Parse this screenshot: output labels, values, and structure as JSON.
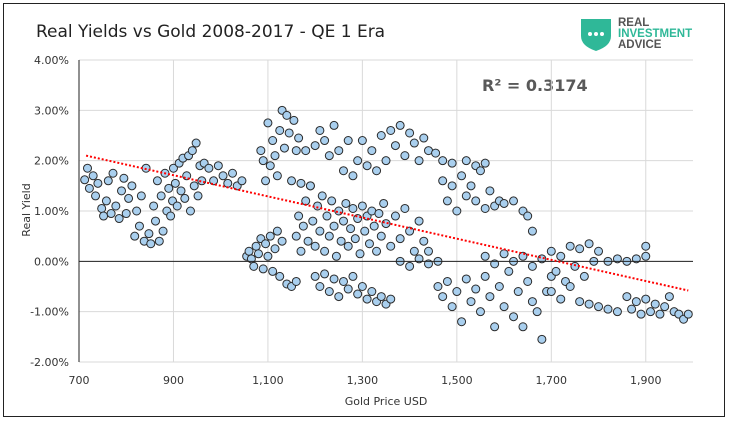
{
  "chart_data": {
    "type": "scatter",
    "title": "Real Yields vs Gold 2008-2017 - QE 1 Era",
    "xlabel": "Gold Price USD",
    "ylabel": "Real Yield",
    "xlim": [
      700,
      2000
    ],
    "ylim": [
      -2.0,
      4.0
    ],
    "x_ticks": [
      "700",
      "900",
      "1,100",
      "1,300",
      "1,500",
      "1,700",
      "1,900"
    ],
    "x_tick_values": [
      700,
      900,
      1100,
      1300,
      1500,
      1700,
      1900
    ],
    "y_ticks": [
      "4.00%",
      "3.00%",
      "2.00%",
      "1.00%",
      "0.00%",
      "-1.00%",
      "-2.00%"
    ],
    "y_tick_values": [
      4,
      3,
      2,
      1,
      0,
      -1,
      -2
    ],
    "grid": true,
    "annotation": "R² = 0.3174",
    "trendline": {
      "style": "dotted",
      "color": "#ff0000",
      "points": [
        [
          715,
          2.1
        ],
        [
          1990,
          -0.58
        ]
      ]
    },
    "marker_fill": "#a9cfee",
    "marker_stroke": "#2b2b2b",
    "points": [
      [
        712,
        1.62
      ],
      [
        718,
        1.85
      ],
      [
        722,
        1.45
      ],
      [
        730,
        1.7
      ],
      [
        735,
        1.3
      ],
      [
        740,
        1.55
      ],
      [
        748,
        1.05
      ],
      [
        752,
        0.9
      ],
      [
        758,
        1.2
      ],
      [
        762,
        1.6
      ],
      [
        768,
        0.95
      ],
      [
        772,
        1.75
      ],
      [
        778,
        1.1
      ],
      [
        785,
        0.85
      ],
      [
        790,
        1.4
      ],
      [
        795,
        1.65
      ],
      [
        800,
        0.95
      ],
      [
        805,
        1.25
      ],
      [
        812,
        1.5
      ],
      [
        818,
        0.5
      ],
      [
        822,
        1.0
      ],
      [
        828,
        0.7
      ],
      [
        832,
        1.3
      ],
      [
        838,
        0.4
      ],
      [
        842,
        1.85
      ],
      [
        848,
        0.55
      ],
      [
        852,
        0.35
      ],
      [
        858,
        1.1
      ],
      [
        862,
        0.8
      ],
      [
        866,
        1.6
      ],
      [
        870,
        0.4
      ],
      [
        874,
        1.3
      ],
      [
        878,
        0.6
      ],
      [
        882,
        1.75
      ],
      [
        886,
        1.0
      ],
      [
        890,
        1.45
      ],
      [
        894,
        0.9
      ],
      [
        898,
        1.2
      ],
      [
        900,
        1.85
      ],
      [
        904,
        1.55
      ],
      [
        908,
        1.1
      ],
      [
        912,
        1.95
      ],
      [
        916,
        1.4
      ],
      [
        920,
        2.05
      ],
      [
        924,
        1.25
      ],
      [
        928,
        1.7
      ],
      [
        932,
        2.1
      ],
      [
        936,
        1.0
      ],
      [
        940,
        2.2
      ],
      [
        944,
        1.5
      ],
      [
        948,
        2.35
      ],
      [
        952,
        1.3
      ],
      [
        956,
        1.9
      ],
      [
        960,
        1.6
      ],
      [
        965,
        1.95
      ],
      [
        975,
        1.85
      ],
      [
        985,
        1.6
      ],
      [
        995,
        1.9
      ],
      [
        1005,
        1.7
      ],
      [
        1015,
        1.55
      ],
      [
        1025,
        1.75
      ],
      [
        1035,
        1.5
      ],
      [
        1045,
        1.6
      ],
      [
        1055,
        0.1
      ],
      [
        1060,
        0.2
      ],
      [
        1065,
        0.05
      ],
      [
        1070,
        -0.1
      ],
      [
        1075,
        0.3
      ],
      [
        1080,
        0.15
      ],
      [
        1085,
        0.45
      ],
      [
        1090,
        -0.15
      ],
      [
        1095,
        0.35
      ],
      [
        1100,
        0.1
      ],
      [
        1105,
        0.5
      ],
      [
        1110,
        -0.2
      ],
      [
        1115,
        0.25
      ],
      [
        1120,
        0.6
      ],
      [
        1125,
        -0.3
      ],
      [
        1130,
        0.4
      ],
      [
        1140,
        -0.45
      ],
      [
        1150,
        -0.5
      ],
      [
        1160,
        -0.4
      ],
      [
        1085,
        2.2
      ],
      [
        1090,
        2.0
      ],
      [
        1095,
        1.6
      ],
      [
        1100,
        2.75
      ],
      [
        1105,
        1.9
      ],
      [
        1110,
        2.4
      ],
      [
        1115,
        2.1
      ],
      [
        1120,
        1.7
      ],
      [
        1125,
        2.6
      ],
      [
        1130,
        3.0
      ],
      [
        1135,
        2.25
      ],
      [
        1140,
        2.9
      ],
      [
        1145,
        2.55
      ],
      [
        1150,
        1.6
      ],
      [
        1155,
        2.8
      ],
      [
        1160,
        2.2
      ],
      [
        1165,
        2.45
      ],
      [
        1170,
        1.55
      ],
      [
        1180,
        2.2
      ],
      [
        1190,
        1.5
      ],
      [
        1200,
        2.3
      ],
      [
        1210,
        2.6
      ],
      [
        1220,
        2.4
      ],
      [
        1230,
        2.1
      ],
      [
        1240,
        2.7
      ],
      [
        1250,
        2.2
      ],
      [
        1260,
        1.8
      ],
      [
        1270,
        2.4
      ],
      [
        1280,
        1.7
      ],
      [
        1290,
        2.0
      ],
      [
        1160,
        0.5
      ],
      [
        1165,
        0.9
      ],
      [
        1170,
        0.2
      ],
      [
        1175,
        0.7
      ],
      [
        1180,
        1.2
      ],
      [
        1185,
        0.4
      ],
      [
        1190,
        1.5
      ],
      [
        1195,
        0.8
      ],
      [
        1200,
        0.3
      ],
      [
        1205,
        1.1
      ],
      [
        1210,
        0.6
      ],
      [
        1215,
        1.3
      ],
      [
        1220,
        0.2
      ],
      [
        1225,
        0.9
      ],
      [
        1230,
        0.5
      ],
      [
        1235,
        1.2
      ],
      [
        1240,
        0.7
      ],
      [
        1245,
        0.1
      ],
      [
        1250,
        1.0
      ],
      [
        1255,
        0.4
      ],
      [
        1260,
        0.8
      ],
      [
        1265,
        1.15
      ],
      [
        1270,
        0.3
      ],
      [
        1275,
        0.65
      ],
      [
        1280,
        1.05
      ],
      [
        1285,
        0.45
      ],
      [
        1290,
        0.85
      ],
      [
        1295,
        0.15
      ],
      [
        1300,
        1.1
      ],
      [
        1305,
        0.6
      ],
      [
        1310,
        0.9
      ],
      [
        1315,
        0.35
      ],
      [
        1320,
        1.0
      ],
      [
        1325,
        0.7
      ],
      [
        1330,
        0.2
      ],
      [
        1335,
        0.95
      ],
      [
        1340,
        0.5
      ],
      [
        1345,
        1.15
      ],
      [
        1350,
        0.75
      ],
      [
        1360,
        0.3
      ],
      [
        1370,
        0.9
      ],
      [
        1380,
        0.45
      ],
      [
        1390,
        1.05
      ],
      [
        1400,
        0.6
      ],
      [
        1410,
        0.2
      ],
      [
        1420,
        0.8
      ],
      [
        1430,
        0.4
      ],
      [
        1440,
        0.2
      ],
      [
        1200,
        -0.3
      ],
      [
        1210,
        -0.5
      ],
      [
        1220,
        -0.25
      ],
      [
        1230,
        -0.6
      ],
      [
        1240,
        -0.35
      ],
      [
        1250,
        -0.7
      ],
      [
        1260,
        -0.4
      ],
      [
        1270,
        -0.55
      ],
      [
        1280,
        -0.3
      ],
      [
        1290,
        -0.65
      ],
      [
        1300,
        -0.5
      ],
      [
        1310,
        -0.75
      ],
      [
        1320,
        -0.6
      ],
      [
        1330,
        -0.8
      ],
      [
        1340,
        -0.7
      ],
      [
        1350,
        -0.85
      ],
      [
        1360,
        -0.75
      ],
      [
        1300,
        2.4
      ],
      [
        1310,
        1.9
      ],
      [
        1320,
        2.2
      ],
      [
        1330,
        1.8
      ],
      [
        1340,
        2.5
      ],
      [
        1350,
        2.0
      ],
      [
        1360,
        2.6
      ],
      [
        1370,
        2.3
      ],
      [
        1380,
        2.7
      ],
      [
        1390,
        2.1
      ],
      [
        1400,
        2.55
      ],
      [
        1410,
        2.35
      ],
      [
        1420,
        2.0
      ],
      [
        1430,
        2.45
      ],
      [
        1440,
        2.2
      ],
      [
        1455,
        2.15
      ],
      [
        1470,
        2.0
      ],
      [
        1490,
        1.95
      ],
      [
        1520,
        2.0
      ],
      [
        1540,
        1.9
      ],
      [
        1560,
        1.95
      ],
      [
        1380,
        0.0
      ],
      [
        1400,
        -0.1
      ],
      [
        1420,
        0.05
      ],
      [
        1440,
        -0.05
      ],
      [
        1460,
        0.0
      ],
      [
        1470,
        1.6
      ],
      [
        1480,
        1.2
      ],
      [
        1490,
        1.5
      ],
      [
        1500,
        1.0
      ],
      [
        1510,
        1.7
      ],
      [
        1520,
        1.3
      ],
      [
        1530,
        1.5
      ],
      [
        1540,
        1.2
      ],
      [
        1550,
        1.8
      ],
      [
        1560,
        1.05
      ],
      [
        1570,
        1.4
      ],
      [
        1580,
        1.1
      ],
      [
        1590,
        1.2
      ],
      [
        1600,
        1.15
      ],
      [
        1620,
        1.2
      ],
      [
        1640,
        1.0
      ],
      [
        1650,
        0.9
      ],
      [
        1660,
        0.6
      ],
      [
        1460,
        -0.5
      ],
      [
        1470,
        -0.7
      ],
      [
        1480,
        -0.4
      ],
      [
        1490,
        -0.9
      ],
      [
        1500,
        -0.6
      ],
      [
        1510,
        -1.2
      ],
      [
        1520,
        -0.35
      ],
      [
        1530,
        -0.8
      ],
      [
        1540,
        -0.55
      ],
      [
        1550,
        -1.0
      ],
      [
        1560,
        -0.3
      ],
      [
        1570,
        -0.7
      ],
      [
        1580,
        -1.3
      ],
      [
        1590,
        -0.5
      ],
      [
        1600,
        -0.9
      ],
      [
        1610,
        -0.2
      ],
      [
        1620,
        -1.1
      ],
      [
        1630,
        -0.6
      ],
      [
        1640,
        -1.3
      ],
      [
        1650,
        -0.4
      ],
      [
        1660,
        -0.8
      ],
      [
        1670,
        -1.0
      ],
      [
        1680,
        -1.55
      ],
      [
        1690,
        -0.6
      ],
      [
        1700,
        -0.3
      ],
      [
        1560,
        0.1
      ],
      [
        1580,
        -0.05
      ],
      [
        1600,
        0.15
      ],
      [
        1620,
        0.0
      ],
      [
        1640,
        0.1
      ],
      [
        1660,
        -0.1
      ],
      [
        1680,
        0.05
      ],
      [
        1700,
        0.2
      ],
      [
        1710,
        -0.2
      ],
      [
        1720,
        0.1
      ],
      [
        1730,
        -0.4
      ],
      [
        1740,
        0.3
      ],
      [
        1750,
        -0.1
      ],
      [
        1760,
        0.25
      ],
      [
        1770,
        -0.3
      ],
      [
        1780,
        0.35
      ],
      [
        1790,
        0.0
      ],
      [
        1800,
        0.2
      ],
      [
        1820,
        0.0
      ],
      [
        1840,
        0.05
      ],
      [
        1860,
        0.0
      ],
      [
        1880,
        0.05
      ],
      [
        1900,
        0.1
      ],
      [
        1900,
        0.3
      ],
      [
        1700,
        -0.6
      ],
      [
        1720,
        -0.75
      ],
      [
        1740,
        -0.5
      ],
      [
        1760,
        -0.8
      ],
      [
        1780,
        -0.85
      ],
      [
        1800,
        -0.9
      ],
      [
        1820,
        -0.95
      ],
      [
        1840,
        -1.0
      ],
      [
        1860,
        -0.7
      ],
      [
        1870,
        -0.95
      ],
      [
        1880,
        -0.8
      ],
      [
        1890,
        -1.05
      ],
      [
        1900,
        -0.75
      ],
      [
        1910,
        -1.0
      ],
      [
        1920,
        -0.85
      ],
      [
        1930,
        -1.05
      ],
      [
        1940,
        -0.9
      ],
      [
        1950,
        -0.7
      ],
      [
        1960,
        -1.0
      ],
      [
        1970,
        -1.05
      ],
      [
        1980,
        -1.15
      ],
      [
        1990,
        -1.05
      ]
    ]
  },
  "logo": {
    "line1": "REAL",
    "line2": "INVESTMENT",
    "line3": "ADVICE",
    "shield_color": "#2fb898"
  }
}
